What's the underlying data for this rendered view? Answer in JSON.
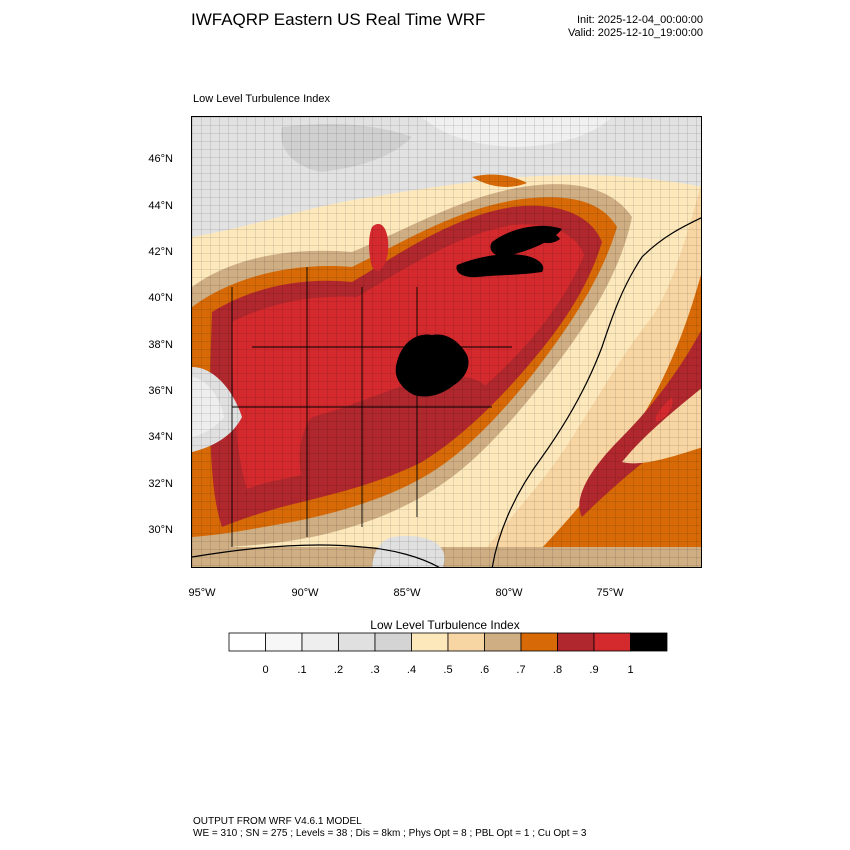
{
  "header": {
    "title": "IWFAQRP Eastern US Real Time WRF",
    "init": "Init: 2025-12-04_00:00:00",
    "valid": "Valid: 2025-12-10_19:00:00"
  },
  "map": {
    "subtitle": "Low Level Turbulence Index",
    "lat_labels": [
      "46°N",
      "44°N",
      "42°N",
      "40°N",
      "38°N",
      "36°N",
      "34°N",
      "32°N",
      "30°N"
    ],
    "lon_labels": [
      "95°W",
      "90°W",
      "85°W",
      "80°W",
      "75°W"
    ]
  },
  "colorbar": {
    "title": "Low Level Turbulence Index",
    "labels": [
      "0",
      ".1",
      ".2",
      ".3",
      ".4",
      ".5",
      ".6",
      ".7",
      ".8",
      ".9",
      "1"
    ],
    "colors": [
      "#ffffff",
      "#f7f7f7",
      "#eeeeee",
      "#e0e0e0",
      "#d4d4d4",
      "#fde8bc",
      "#f7d6a3",
      "#cfae84",
      "#d76a06",
      "#b0282d",
      "#d42a2e",
      "#000000"
    ]
  },
  "footer": {
    "line1": "OUTPUT FROM WRF V4.6.1 MODEL",
    "line2": "WE = 310 ; SN = 275 ; Levels = 38 ; Dis = 8km ; Phys Opt = 8 ; PBL Opt = 1 ; Cu Opt = 3"
  }
}
